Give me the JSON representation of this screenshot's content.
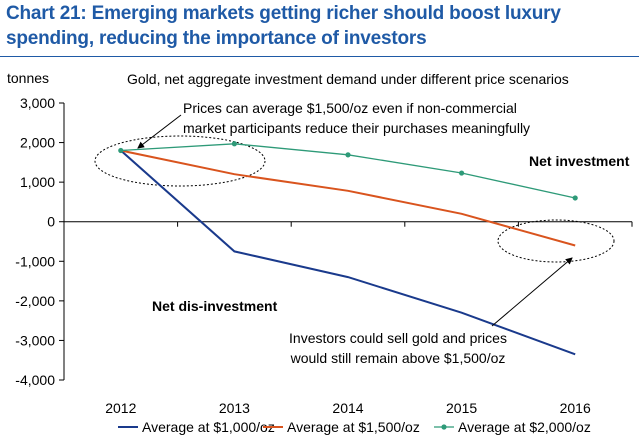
{
  "chart_data": {
    "type": "line",
    "title_lines": [
      "Chart 21: Emerging markets getting richer should boost luxury",
      "spending, reducing the importance of investors"
    ],
    "subtitle": "Gold, net aggregate investment demand under different price scenarios",
    "ylabel": "tonnes",
    "xlabel": "",
    "categories": [
      "2012",
      "2013",
      "2014",
      "2015",
      "2016"
    ],
    "ylim": [
      -4000,
      3000
    ],
    "yticks": [
      3000,
      2000,
      1000,
      0,
      -1000,
      -2000,
      -3000,
      -4000
    ],
    "ytick_labels": [
      "3,000",
      "2,000",
      "1,000",
      "0",
      "-1,000",
      "-2,000",
      "-3,000",
      "-4,000"
    ],
    "series": [
      {
        "name": "Average at $1,000/oz",
        "color": "#1a3a8c",
        "marker": false,
        "values": [
          1800,
          -750,
          -1400,
          -2300,
          -3350
        ]
      },
      {
        "name": "Average at $1,500/oz",
        "color": "#d9541e",
        "marker": false,
        "values": [
          1800,
          1200,
          780,
          200,
          -600
        ]
      },
      {
        "name": "Average at $2,000/oz",
        "color": "#2e9a78",
        "marker": true,
        "values": [
          1800,
          1970,
          1690,
          1230,
          600
        ]
      }
    ],
    "annotations": {
      "top_note": [
        "Prices can average $1,500/oz even if non-commercial",
        "market participants reduce their purchases meaningfully"
      ],
      "bottom_note": [
        "Investors could sell gold and prices",
        "would still remain above $1,500/oz"
      ],
      "net_investment": "Net investment",
      "net_disinvestment": "Net dis-investment"
    },
    "legend_position": "bottom",
    "grid": false
  }
}
